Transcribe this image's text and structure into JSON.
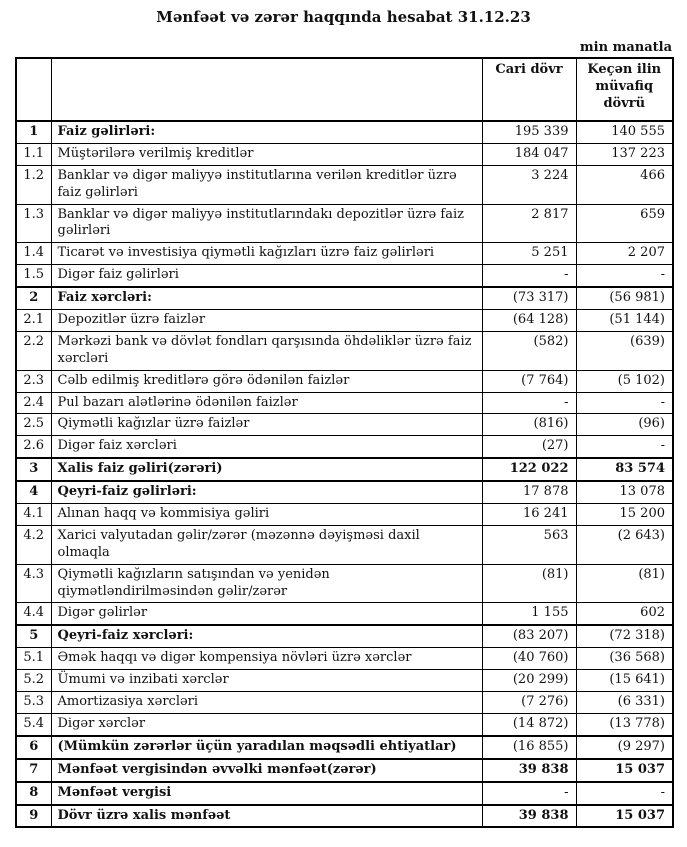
{
  "title": "Mənfəət və zərər haqqında hesabat 31.12.23",
  "unit_note": "min manatla",
  "colors": {
    "background": "#ffffff",
    "text": "#111111",
    "border": "#000000"
  },
  "table": {
    "headers": {
      "number": "",
      "description": "",
      "current": "Cari dövr",
      "previous": "Keçən ilin müvafiq dövrü"
    },
    "rows": [
      {
        "num": "1",
        "label": "Faiz gəlirləri:",
        "current": "195 339",
        "previous": "140 555",
        "section": true,
        "bold_values": false
      },
      {
        "num": "1.1",
        "label": "Müştərilərə verilmiş kreditlər",
        "current": "184 047",
        "previous": "137 223",
        "section": false,
        "bold_values": false
      },
      {
        "num": "1.2",
        "label": "Banklar və digər maliyyə institutlarına verilən kreditlər üzrə faiz gəlirləri",
        "current": "3 224",
        "previous": "466",
        "section": false,
        "bold_values": false
      },
      {
        "num": "1.3",
        "label": "Banklar və digər maliyyə institutlarındakı depozitlər üzrə faiz gəlirləri",
        "current": "2 817",
        "previous": "659",
        "section": false,
        "bold_values": false
      },
      {
        "num": "1.4",
        "label": "Ticarət və investisiya qiymətli kağızları üzrə faiz gəlirləri",
        "current": "5 251",
        "previous": "2 207",
        "section": false,
        "bold_values": false
      },
      {
        "num": "1.5",
        "label": "Digər faiz gəlirləri",
        "current": "-",
        "previous": "-",
        "section": false,
        "bold_values": false
      },
      {
        "num": "2",
        "label": "Faiz xərcləri:",
        "current": "(73 317)",
        "previous": "(56 981)",
        "section": true,
        "bold_values": false
      },
      {
        "num": "2.1",
        "label": "Depozitlər üzrə faizlər",
        "current": "(64 128)",
        "previous": "(51 144)",
        "section": false,
        "bold_values": false
      },
      {
        "num": "2.2",
        "label": "Mərkəzi bank və dövlət fondları qarşısında öhdəliklər üzrə faiz xərcləri",
        "current": "(582)",
        "previous": "(639)",
        "section": false,
        "bold_values": false
      },
      {
        "num": "2.3",
        "label": "Cəlb edilmiş kreditlərə görə ödənilən faizlər",
        "current": "(7 764)",
        "previous": "(5 102)",
        "section": false,
        "bold_values": false
      },
      {
        "num": "2.4",
        "label": "Pul bazarı alətlərinə ödənilən faizlər",
        "current": "-",
        "previous": "-",
        "section": false,
        "bold_values": false
      },
      {
        "num": "2.5",
        "label": "Qiymətli kağızlar üzrə faizlər",
        "current": "(816)",
        "previous": "(96)",
        "section": false,
        "bold_values": false
      },
      {
        "num": "2.6",
        "label": "Digər faiz xərcləri",
        "current": "(27)",
        "previous": "-",
        "section": false,
        "bold_values": false
      },
      {
        "num": "3",
        "label": "Xalis faiz gəliri(zərəri)",
        "current": "122 022",
        "previous": "83 574",
        "section": true,
        "bold_values": true
      },
      {
        "num": "4",
        "label": "Qeyri-faiz gəlirləri:",
        "current": "17 878",
        "previous": "13 078",
        "section": true,
        "bold_values": false
      },
      {
        "num": "4.1",
        "label": "Alınan haqq və kommisiya gəliri",
        "current": "16 241",
        "previous": "15 200",
        "section": false,
        "bold_values": false
      },
      {
        "num": "4.2",
        "label": "Xarici valyutadan gəlir/zərər (məzənnə dəyişməsi daxil olmaqla",
        "current": "563",
        "previous": "(2 643)",
        "section": false,
        "bold_values": false
      },
      {
        "num": "4.3",
        "label": "Qiymətli kağızların satışından və yenidən qiymətləndirilməsindən gəlir/zərər",
        "current": "(81)",
        "previous": "(81)",
        "section": false,
        "bold_values": false
      },
      {
        "num": "4.4",
        "label": "Digər gəlirlər",
        "current": "1 155",
        "previous": "602",
        "section": false,
        "bold_values": false
      },
      {
        "num": "5",
        "label": "Qeyri-faiz xərcləri:",
        "current": "(83 207)",
        "previous": "(72 318)",
        "section": true,
        "bold_values": false
      },
      {
        "num": "5.1",
        "label": "Əmək haqqı və digər kompensiya növləri üzrə xərclər",
        "current": "(40 760)",
        "previous": "(36 568)",
        "section": false,
        "bold_values": false
      },
      {
        "num": "5.2",
        "label": "Ümumi və inzibati xərclər",
        "current": "(20 299)",
        "previous": "(15 641)",
        "section": false,
        "bold_values": false
      },
      {
        "num": "5.3",
        "label": "Amortizasiya xərcləri",
        "current": "(7 276)",
        "previous": "(6 331)",
        "section": false,
        "bold_values": false
      },
      {
        "num": "5.4",
        "label": "Digər xərclər",
        "current": "(14 872)",
        "previous": "(13 778)",
        "section": false,
        "bold_values": false
      },
      {
        "num": "6",
        "label": "(Mümkün zərərlər üçün yaradılan məqsədli ehtiyatlar)",
        "current": "(16 855)",
        "previous": "(9 297)",
        "section": true,
        "bold_values": false
      },
      {
        "num": "7",
        "label": "Mənfəət vergisindən əvvəlki mənfəət(zərər)",
        "current": "39 838",
        "previous": "15 037",
        "section": true,
        "bold_values": true
      },
      {
        "num": "8",
        "label": "Mənfəət vergisi",
        "current": "-",
        "previous": "-",
        "section": true,
        "bold_values": false
      },
      {
        "num": "9",
        "label": "Dövr üzrə xalis mənfəət",
        "current": "39 838",
        "previous": "15 037",
        "section": true,
        "bold_values": true
      }
    ]
  }
}
